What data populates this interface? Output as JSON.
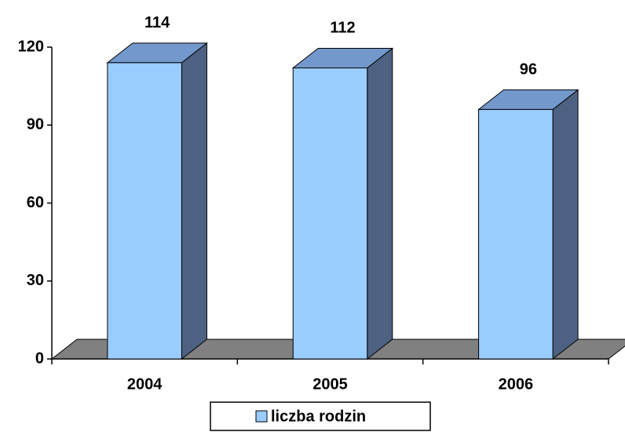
{
  "chart_data": {
    "type": "bar3d",
    "categories": [
      "2004",
      "2005",
      "2006"
    ],
    "series": [
      {
        "name": "liczba rodzin",
        "color": "#99ccff",
        "values": [
          114,
          112,
          96
        ]
      }
    ],
    "ylim": [
      0,
      120
    ],
    "yticks": [
      0,
      30,
      60,
      90,
      120
    ],
    "legend": "bottom"
  }
}
